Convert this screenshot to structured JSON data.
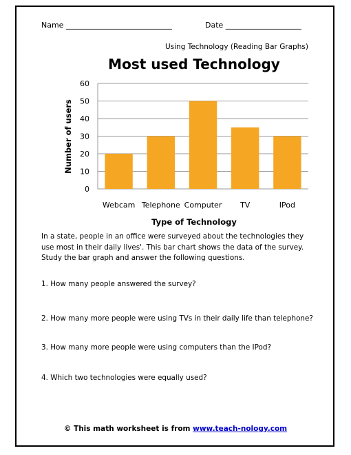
{
  "header": {
    "name_line": "Name ____________________________",
    "date_line": "Date ____________________",
    "subtitle": "Using Technology (Reading Bar Graphs)"
  },
  "chart_data": {
    "type": "bar",
    "title": "Most used Technology",
    "xlabel": "Type of Technology",
    "ylabel": "Number of users",
    "categories": [
      "Webcam",
      "Telephone",
      "Computer",
      "TV",
      "IPod"
    ],
    "values": [
      20,
      30,
      50,
      35,
      30
    ],
    "ylim": [
      0,
      60
    ],
    "yticks": [
      0,
      10,
      20,
      30,
      40,
      50,
      60
    ],
    "bar_color": "#f5a623",
    "grid": true
  },
  "intro": "In a state, people in an office were surveyed about the technologies they use most in their daily lives'. This bar chart shows the data of the survey. Study the bar graph and answer the following questions.",
  "questions": [
    "1. How many people answered the survey?",
    "2. How many more people were using TVs in their daily life than telephone?",
    "3. How many more people were using computers than the IPod?",
    "4. Which two technologies were equally used?"
  ],
  "footer": {
    "prefix": "© This math worksheet is from ",
    "link": "www.teach-nology.com"
  }
}
